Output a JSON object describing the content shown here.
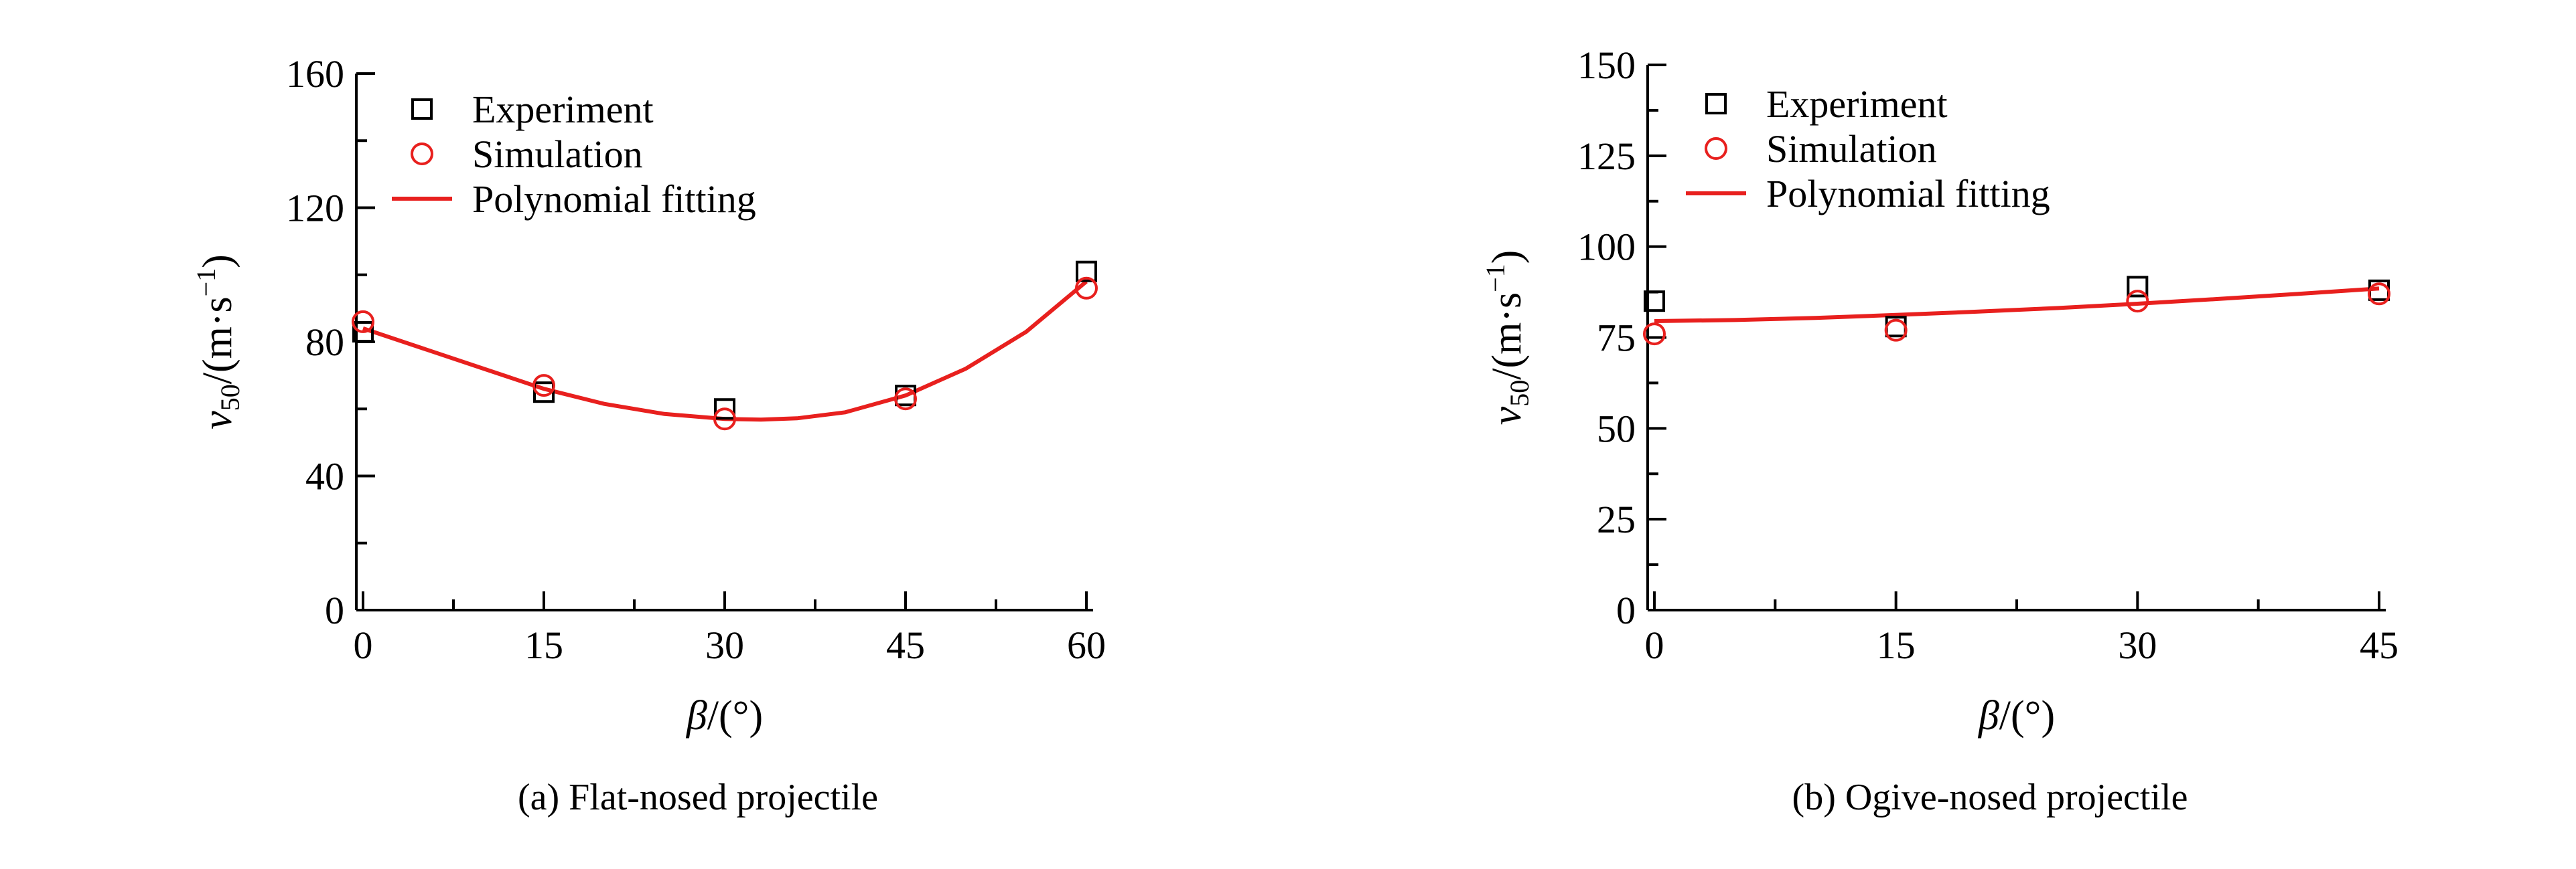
{
  "chart_data": [
    {
      "type": "scatter",
      "caption": "(a) Flat-nosed projectile",
      "xlabel_symbol": "β",
      "xlabel_unit": "/(°)",
      "ylabel_symbol": "v",
      "ylabel_sub": "50",
      "ylabel_unit": "/(m·s",
      "ylabel_sup": "−1",
      "ylabel_close": ")",
      "xlim": [
        0,
        60
      ],
      "ylim": [
        0,
        160
      ],
      "xticks": [
        0,
        15,
        30,
        45,
        60
      ],
      "yticks": [
        0,
        40,
        80,
        120,
        160
      ],
      "legend_position": "top-left",
      "grid": false,
      "series": [
        {
          "name": "Experiment",
          "marker": "square",
          "color": "#000000",
          "x": [
            0,
            15,
            30,
            45,
            60
          ],
          "y": [
            83,
            65,
            60,
            64,
            101
          ]
        },
        {
          "name": "Simulation",
          "marker": "circle",
          "color": "#e8201e",
          "x": [
            0,
            15,
            30,
            45,
            60
          ],
          "y": [
            86,
            67,
            57,
            63,
            96
          ]
        },
        {
          "name": "Polynomial fitting",
          "marker": "line",
          "color": "#e8201e",
          "x": [
            0,
            5,
            10,
            15,
            20,
            25,
            30,
            33,
            36,
            40,
            45,
            50,
            55,
            60
          ],
          "y": [
            84,
            78,
            72,
            66,
            61.5,
            58.5,
            57,
            56.8,
            57.2,
            59,
            64,
            72,
            83,
            98
          ]
        }
      ]
    },
    {
      "type": "scatter",
      "caption": "(b) Ogive-nosed projectile",
      "xlabel_symbol": "β",
      "xlabel_unit": "/(°)",
      "ylabel_symbol": "v",
      "ylabel_sub": "50",
      "ylabel_unit": "/(m·s",
      "ylabel_sup": "−1",
      "ylabel_close": ")",
      "xlim": [
        0,
        45
      ],
      "ylim": [
        0,
        150
      ],
      "xticks": [
        0,
        15,
        30,
        45
      ],
      "yticks": [
        0,
        25,
        50,
        75,
        100,
        125,
        150
      ],
      "legend_position": "top-left",
      "grid": false,
      "series": [
        {
          "name": "Experiment",
          "marker": "square",
          "color": "#000000",
          "x": [
            0,
            15,
            30,
            45
          ],
          "y": [
            85,
            78,
            89,
            88
          ]
        },
        {
          "name": "Simulation",
          "marker": "circle",
          "color": "#e8201e",
          "x": [
            0,
            15,
            30,
            45
          ],
          "y": [
            76,
            77,
            85,
            87
          ]
        },
        {
          "name": "Polynomial fitting",
          "marker": "line",
          "color": "#e8201e",
          "x": [
            0,
            5,
            10,
            15,
            20,
            25,
            30,
            35,
            40,
            45
          ],
          "y": [
            79.5,
            79.8,
            80.4,
            81.2,
            82.1,
            83.1,
            84.3,
            85.6,
            87,
            88.5
          ]
        }
      ]
    }
  ]
}
